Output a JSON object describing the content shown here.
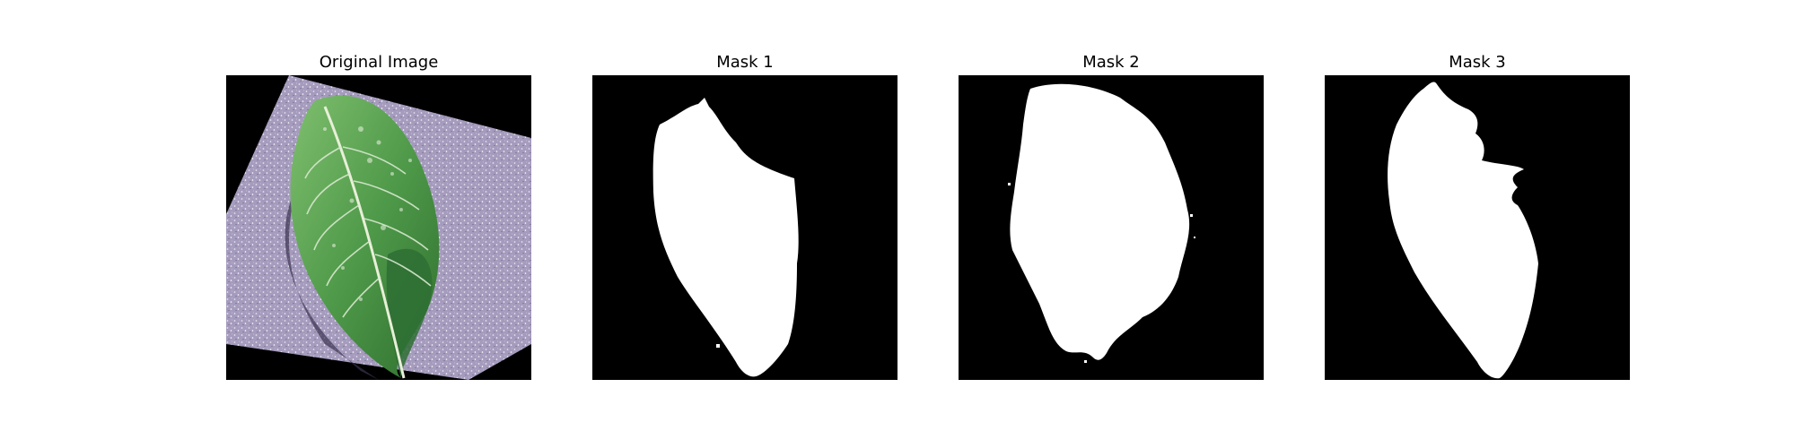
{
  "figure": {
    "panels": [
      {
        "title": "Original Image",
        "content": "photo of a green leaf with pale veins on a speckled lavender surface, rotated diagonally on black background"
      },
      {
        "title": "Mask 1",
        "content": "white leaf-shaped segmentation mask on black"
      },
      {
        "title": "Mask 2",
        "content": "white rounded, ragged-edged segmentation mask on black"
      },
      {
        "title": "Mask 3",
        "content": "white leaf-shaped segmentation mask with a notch on the right, on black"
      }
    ],
    "colors": {
      "background": "#000000",
      "mask": "#ffffff",
      "surface": "#a99fbf",
      "leaf": "#4f9a4a",
      "leaf_dark": "#2f6e2e",
      "vein": "#d8e8cf"
    }
  }
}
